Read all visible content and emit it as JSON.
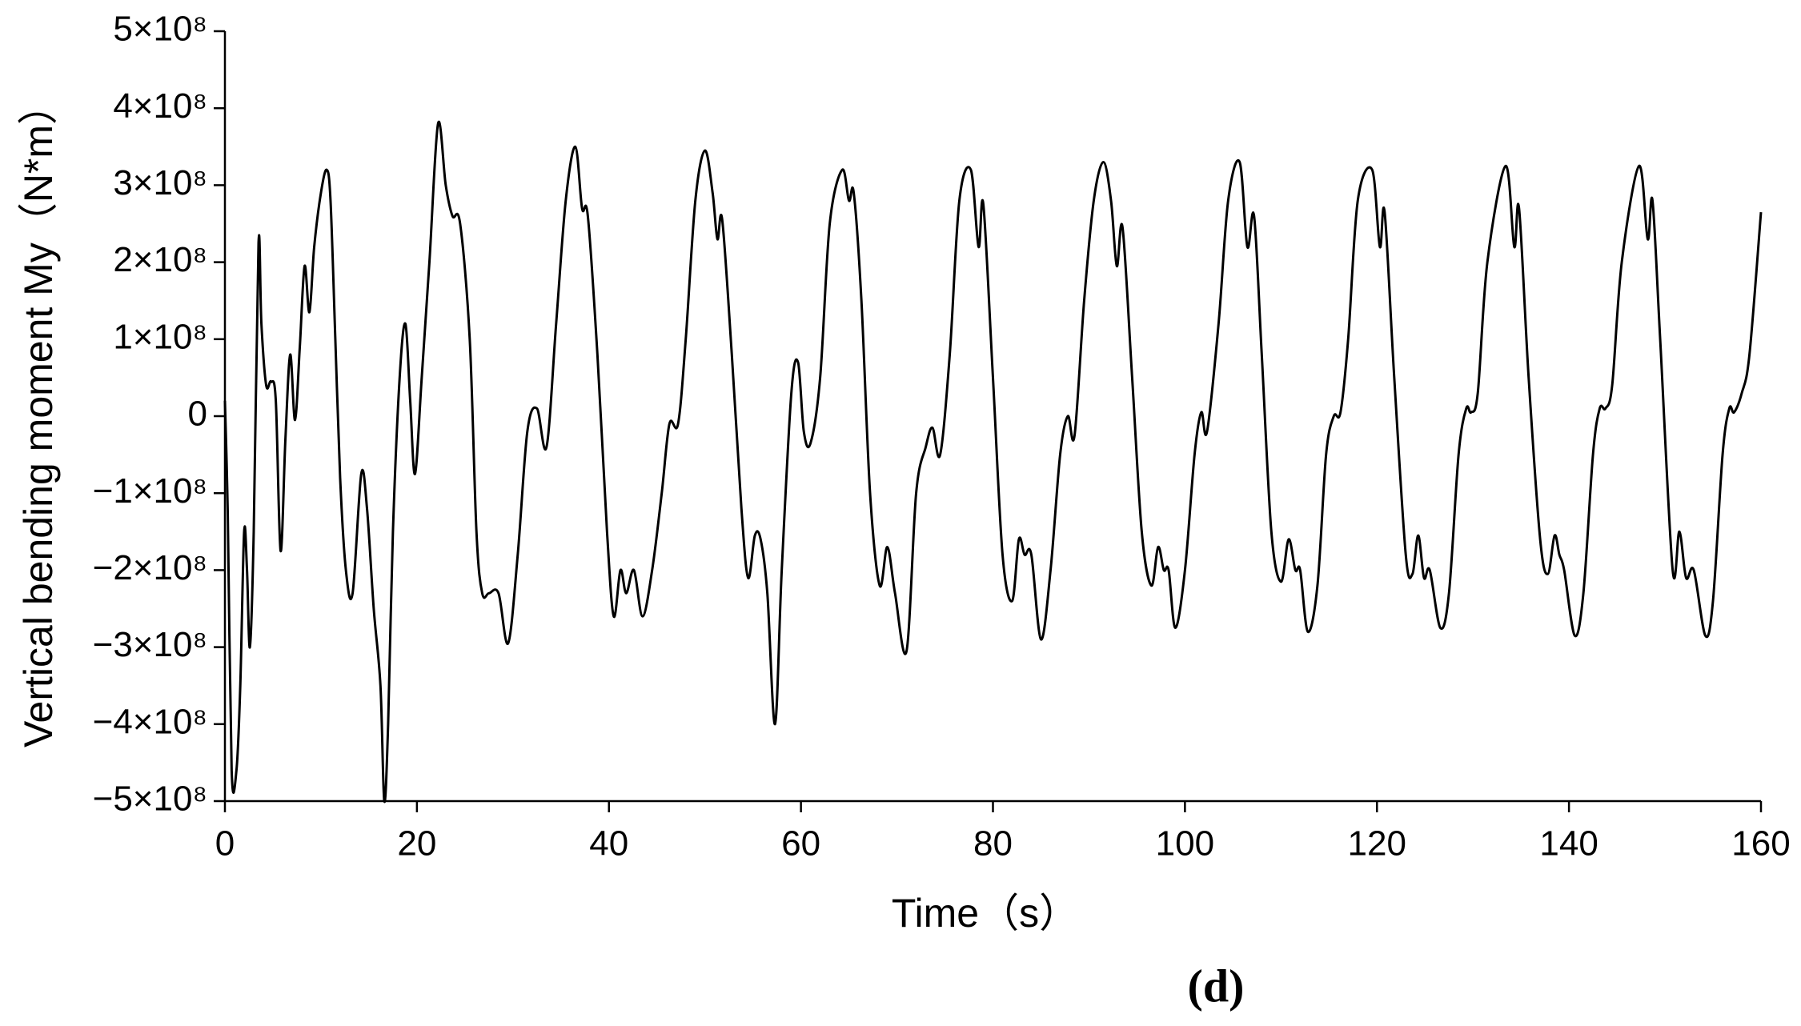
{
  "chart_data": {
    "type": "line",
    "ylabel": "Vertical bending moment My（N*m）",
    "xlabel": "Time（s）",
    "annotation": "(d)",
    "color": "#000000",
    "xlim": [
      0,
      160
    ],
    "xticks": [
      0,
      20,
      40,
      60,
      80,
      100,
      120,
      140,
      160
    ],
    "ylim": [
      -500000000.0,
      500000000.0
    ],
    "yticks": [
      {
        "value": -500000000.0,
        "label": "−5×10⁸"
      },
      {
        "value": -400000000.0,
        "label": "−4×10⁸"
      },
      {
        "value": -300000000.0,
        "label": "−3×10⁸"
      },
      {
        "value": -200000000.0,
        "label": "−2×10⁸"
      },
      {
        "value": -100000000.0,
        "label": "−1×10⁸"
      },
      0,
      {
        "value": 100000000.0,
        "label": "1×10⁸"
      },
      {
        "value": 200000000.0,
        "label": "2×10⁸"
      },
      {
        "value": 300000000.0,
        "label": "3×10⁸"
      },
      {
        "value": 400000000.0,
        "label": "4×10⁸"
      },
      {
        "value": 500000000.0,
        "label": "5×10⁸"
      }
    ],
    "grid": false,
    "x": [
      0,
      0.3,
      0.7,
      1.2,
      1.6,
      2.0,
      2.3,
      2.6,
      3.0,
      3.5,
      3.8,
      4.3,
      4.8,
      5.3,
      5.8,
      6.3,
      6.8,
      7.3,
      7.8,
      8.3,
      8.8,
      9.3,
      10,
      10.6,
      11,
      11.5,
      12,
      12.6,
      13.3,
      14.2,
      14.8,
      15.5,
      16.2,
      16.6,
      17,
      17.5,
      18.2,
      18.8,
      19.3,
      19.8,
      20.5,
      21.3,
      22.2,
      23,
      23.7,
      24.5,
      25.5,
      26.2,
      26.8,
      27.5,
      28.5,
      29.5,
      30.5,
      31.5,
      32.5,
      33.5,
      34.5,
      35.5,
      36.5,
      37.2,
      37.8,
      38.8,
      39.8,
      40.5,
      41.2,
      41.8,
      42.6,
      43.5,
      44.5,
      45.5,
      46.3,
      47.2,
      48,
      49,
      50,
      50.8,
      51.3,
      51.8,
      52.8,
      53.8,
      54.5,
      55.2,
      55.8,
      56.5,
      57.3,
      58,
      59,
      59.7,
      60.3,
      61,
      62,
      63,
      64.3,
      65,
      65.5,
      66.3,
      67.2,
      68.2,
      69,
      69.8,
      71,
      72,
      73,
      73.7,
      74.5,
      75.5,
      76.5,
      77.7,
      78.5,
      79,
      80,
      81,
      82,
      82.7,
      83.3,
      84,
      85,
      86,
      87,
      87.8,
      88.5,
      89.5,
      90.5,
      91.5,
      92.3,
      92.9,
      93.5,
      94.5,
      95.5,
      96.5,
      97.2,
      97.8,
      98.3,
      99,
      100,
      101,
      101.7,
      102.3,
      103.5,
      104.5,
      105.7,
      106.5,
      107.2,
      108,
      109,
      110,
      110.8,
      111.5,
      112,
      112.8,
      113.8,
      114.7,
      115.5,
      116.2,
      117,
      118,
      119.5,
      120.3,
      120.8,
      121.8,
      123,
      123.7,
      124.3,
      124.9,
      125.5,
      126.6,
      127.5,
      128.5,
      129.3,
      129.8,
      130.5,
      131.5,
      133.4,
      134.3,
      134.8,
      135.8,
      137,
      137.8,
      138.5,
      139,
      139.5,
      140.6,
      141.5,
      142.5,
      143.2,
      143.8,
      144.5,
      145.5,
      147.3,
      148.2,
      148.7,
      149.5,
      150.8,
      151.5,
      152.2,
      153,
      154.2,
      155,
      156,
      156.7,
      157.2,
      158,
      158.8,
      160
    ],
    "values": [
      20000000.0,
      -130000000.0,
      -460000000.0,
      -460000000.0,
      -350000000.0,
      -150000000.0,
      -200000000.0,
      -300000000.0,
      -150000000.0,
      225000000.0,
      120000000.0,
      40000000.0,
      45000000.0,
      20000000.0,
      -175000000.0,
      -30000000.0,
      80000000.0,
      -5000000.0,
      90000000.0,
      195000000.0,
      135000000.0,
      220000000.0,
      290000000.0,
      320000000.0,
      280000000.0,
      100000000.0,
      -80000000.0,
      -200000000.0,
      -230000000.0,
      -75000000.0,
      -120000000.0,
      -250000000.0,
      -350000000.0,
      -500000000.0,
      -400000000.0,
      -150000000.0,
      50000000.0,
      120000000.0,
      20000000.0,
      -75000000.0,
      50000000.0,
      200000000.0,
      380000000.0,
      300000000.0,
      260000000.0,
      250000000.0,
      100000000.0,
      -150000000.0,
      -230000000.0,
      -230000000.0,
      -230000000.0,
      -295000000.0,
      -180000000.0,
      -20000000.0,
      10000000.0,
      -40000000.0,
      120000000.0,
      280000000.0,
      350000000.0,
      270000000.0,
      260000000.0,
      80000000.0,
      -150000000.0,
      -260000000.0,
      -200000000.0,
      -230000000.0,
      -200000000.0,
      -260000000.0,
      -200000000.0,
      -100000000.0,
      -10000000.0,
      -10000000.0,
      100000000.0,
      280000000.0,
      345000000.0,
      290000000.0,
      230000000.0,
      255000000.0,
      80000000.0,
      -120000000.0,
      -210000000.0,
      -155000000.0,
      -160000000.0,
      -230000000.0,
      -400000000.0,
      -200000000.0,
      30000000.0,
      70000000.0,
      -20000000.0,
      -35000000.0,
      50000000.0,
      250000000.0,
      320000000.0,
      280000000.0,
      290000000.0,
      150000000.0,
      -100000000.0,
      -220000000.0,
      -170000000.0,
      -230000000.0,
      -305000000.0,
      -100000000.0,
      -40000000.0,
      -15000000.0,
      -50000000.0,
      80000000.0,
      280000000.0,
      320000000.0,
      220000000.0,
      275000000.0,
      50000000.0,
      -180000000.0,
      -240000000.0,
      -160000000.0,
      -180000000.0,
      -180000000.0,
      -290000000.0,
      -200000000.0,
      -50000000.0,
      0.0,
      -25000000.0,
      150000000.0,
      280000000.0,
      330000000.0,
      280000000.0,
      195000000.0,
      245000000.0,
      50000000.0,
      -150000000.0,
      -220000000.0,
      -170000000.0,
      -200000000.0,
      -200000000.0,
      -275000000.0,
      -200000000.0,
      -50000000.0,
      5000000.0,
      -20000000.0,
      120000000.0,
      280000000.0,
      330000000.0,
      220000000.0,
      260000000.0,
      80000000.0,
      -150000000.0,
      -215000000.0,
      -160000000.0,
      -200000000.0,
      -200000000.0,
      -280000000.0,
      -220000000.0,
      -50000000.0,
      0.0,
      5000000.0,
      100000000.0,
      280000000.0,
      320000000.0,
      220000000.0,
      265000000.0,
      50000000.0,
      -180000000.0,
      -205000000.0,
      -155000000.0,
      -210000000.0,
      -200000000.0,
      -275000000.0,
      -230000000.0,
      -50000000.0,
      10000000.0,
      5000000.0,
      30000000.0,
      200000000.0,
      325000000.0,
      220000000.0,
      270000000.0,
      50000000.0,
      -160000000.0,
      -205000000.0,
      -155000000.0,
      -180000000.0,
      -200000000.0,
      -285000000.0,
      -230000000.0,
      -50000000.0,
      10000000.0,
      10000000.0,
      40000000.0,
      200000000.0,
      325000000.0,
      230000000.0,
      280000000.0,
      100000000.0,
      -200000000.0,
      -150000000.0,
      -210000000.0,
      -200000000.0,
      -285000000.0,
      -240000000.0,
      -50000000.0,
      10000000.0,
      5000000.0,
      30000000.0,
      80000000.0,
      265000000.0
    ]
  }
}
